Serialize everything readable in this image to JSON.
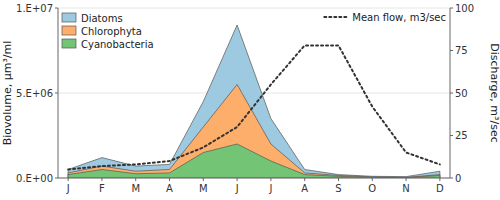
{
  "chart_data": {
    "type": "area",
    "stacked": false,
    "legend": "top-left",
    "categories": [
      "J",
      "F",
      "M",
      "A",
      "M",
      "J",
      "J",
      "A",
      "S",
      "O",
      "N",
      "D"
    ],
    "series": [
      {
        "name": "Diatoms",
        "values": [
          500000,
          1200000,
          700000,
          800000,
          4500000,
          9000000,
          3500000,
          500000,
          200000,
          100000,
          80000,
          400000
        ]
      },
      {
        "name": "Chlorophyta",
        "values": [
          300000,
          700000,
          400000,
          500000,
          3000000,
          5500000,
          2000000,
          300000,
          150000,
          60000,
          40000,
          200000
        ]
      },
      {
        "name": "Cyanobacteria",
        "values": [
          200000,
          500000,
          250000,
          300000,
          1500000,
          2000000,
          1000000,
          200000,
          100000,
          40000,
          20000,
          150000
        ]
      },
      {
        "name": "Mean flow, m3/sec",
        "type": "line",
        "axis": "y2",
        "line_style": "dotted",
        "values": [
          5,
          7,
          8,
          10,
          18,
          30,
          55,
          78,
          78,
          42,
          15,
          8
        ]
      }
    ],
    "ylim": [
      0,
      10000000
    ],
    "yticks": [
      {
        "value": 0,
        "label": "0.E+00"
      },
      {
        "value": 5000000,
        "label": "5.E+06"
      },
      {
        "value": 10000000,
        "label": "1.E+07"
      }
    ],
    "y2lim": [
      0,
      100
    ],
    "y2ticks": [
      0,
      25,
      50,
      75,
      100
    ],
    "y_label": "Biovolume, μm³/ml",
    "y2_label": "Discharge, m³/sec"
  }
}
